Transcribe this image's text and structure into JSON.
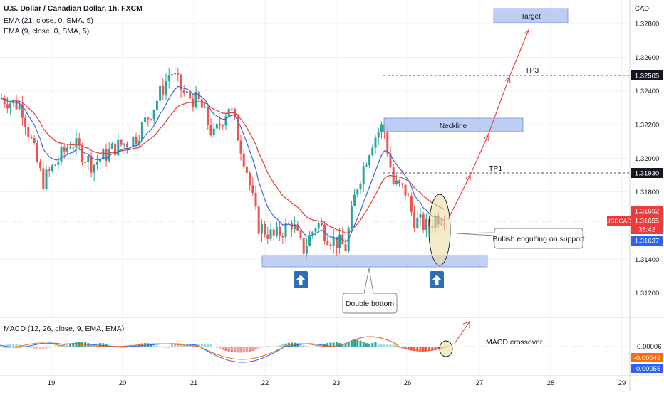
{
  "header": {
    "title": "U.S. Dollar / Canadian Dollar, 1h, FXCM",
    "indicator_1": "EMA (21, close, 0, SMA, 5)",
    "indicator_2": "EMA (9, close, 0, SMA, 5)"
  },
  "chart_data": {
    "type": "candlestick",
    "symbol": "USDCAD",
    "currency": "CAD",
    "price_ticks": [
      "1.32800",
      "1.32600",
      "1.32400",
      "1.32200",
      "1.32000",
      "1.31800",
      "1.31400",
      "1.31200"
    ],
    "price_range": [
      1.3108,
      1.3294
    ],
    "date_ticks": [
      "19",
      "20",
      "21",
      "22",
      "23",
      "26",
      "27",
      "28",
      "29"
    ],
    "price_tags": {
      "tp3": "1.32505",
      "tp1": "1.31930",
      "high": "1.31692",
      "symbol_label": "USDCAD",
      "last": "1.31655",
      "countdown": "38:42",
      "low": "1.31637"
    },
    "annotations": {
      "target": "Target",
      "tp3": "TP3",
      "neckline": "Neckline",
      "tp1": "TP1",
      "bullish": "Bullish engulfing on support",
      "double_bottom": "Double bottom",
      "macd_crossover": "MACD crossover"
    },
    "macd": {
      "label": "MACD (12, 26, close, 9, EMA, EMA)",
      "values": [
        "-0.00006",
        "-0.00049",
        "-0.00055"
      ]
    },
    "colors": {
      "up": "#26a69a",
      "down": "#ef5350",
      "ema21": "#e53935",
      "ema9": "#3f66d6",
      "zone": "#b3c4f0",
      "macd_line": "#2962ff",
      "signal_line": "#ff6d00"
    }
  }
}
